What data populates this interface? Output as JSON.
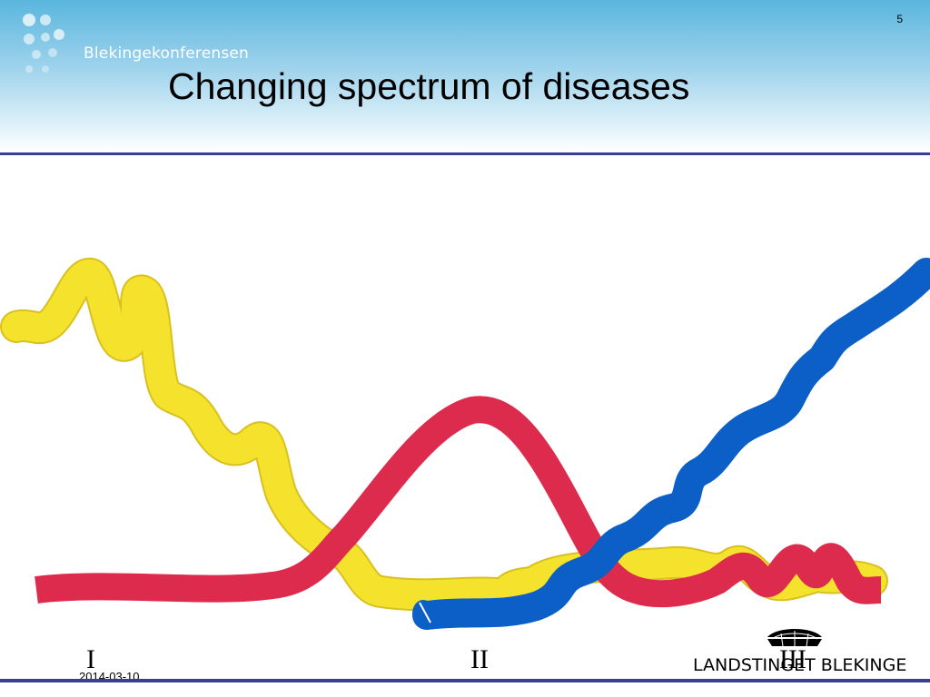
{
  "header": {
    "logo_text": "Blekingekonferensen",
    "slide_number": "5",
    "title": "Changing spectrum of diseases"
  },
  "colors": {
    "header_gradient_top": "#5ab6de",
    "rule": "#3b3f93",
    "yellow_curve": "#f4e22c",
    "red_curve": "#dd2b4d",
    "blue_curve": "#0b5fc6"
  },
  "illustration": {
    "curves": [
      "yellow",
      "red",
      "blue"
    ],
    "phase_labels": [
      "I",
      "II",
      "III"
    ]
  },
  "footer": {
    "date": "2014-03-10",
    "brand_text": "LANDSTINGET BLEKINGE",
    "brand_icon": "crown-icon"
  }
}
